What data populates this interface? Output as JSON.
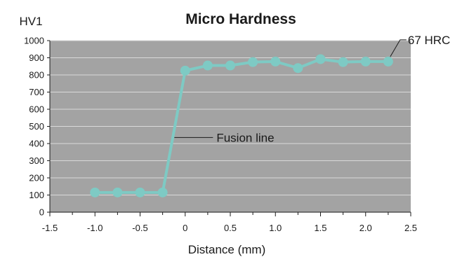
{
  "chart_data": {
    "type": "line",
    "title": "Micro Hardness",
    "ylabel": "HV1",
    "xlabel": "Distance (mm)",
    "xlim": [
      -1.5,
      2.5
    ],
    "ylim": [
      0,
      1000
    ],
    "x_ticks": [
      -1.5,
      -1.0,
      -0.5,
      0,
      0.5,
      1.0,
      1.5,
      2.0,
      2.5
    ],
    "x_tick_labels": [
      "-1.5",
      "-1.0",
      "-0.5",
      "0",
      "0.5",
      "1.0",
      "1.5",
      "2.0",
      "2.5"
    ],
    "y_ticks": [
      0,
      100,
      200,
      300,
      400,
      500,
      600,
      700,
      800,
      900,
      1000
    ],
    "y_tick_labels": [
      "0",
      "100",
      "200",
      "300",
      "400",
      "500",
      "600",
      "700",
      "800",
      "900",
      "1000"
    ],
    "grid": true,
    "series": [
      {
        "x": [
          -1.0,
          -0.75,
          -0.5,
          -0.25,
          0,
          0.25,
          0.5,
          0.75,
          1.0,
          1.25,
          1.5,
          1.75,
          2.0,
          2.25
        ],
        "y": [
          115,
          115,
          115,
          115,
          825,
          855,
          855,
          875,
          878,
          840,
          892,
          875,
          878,
          878
        ],
        "color": "#7ecac4"
      }
    ],
    "annotations": [
      {
        "text": "Fusion line",
        "x": -0.12,
        "y": 435
      },
      {
        "text": "67 HRC",
        "x": 2.25,
        "y": 878
      }
    ],
    "colors": {
      "plot_background": "#a3a3a3",
      "grid": "#d9d9d9",
      "line": "#7ecac4"
    }
  }
}
